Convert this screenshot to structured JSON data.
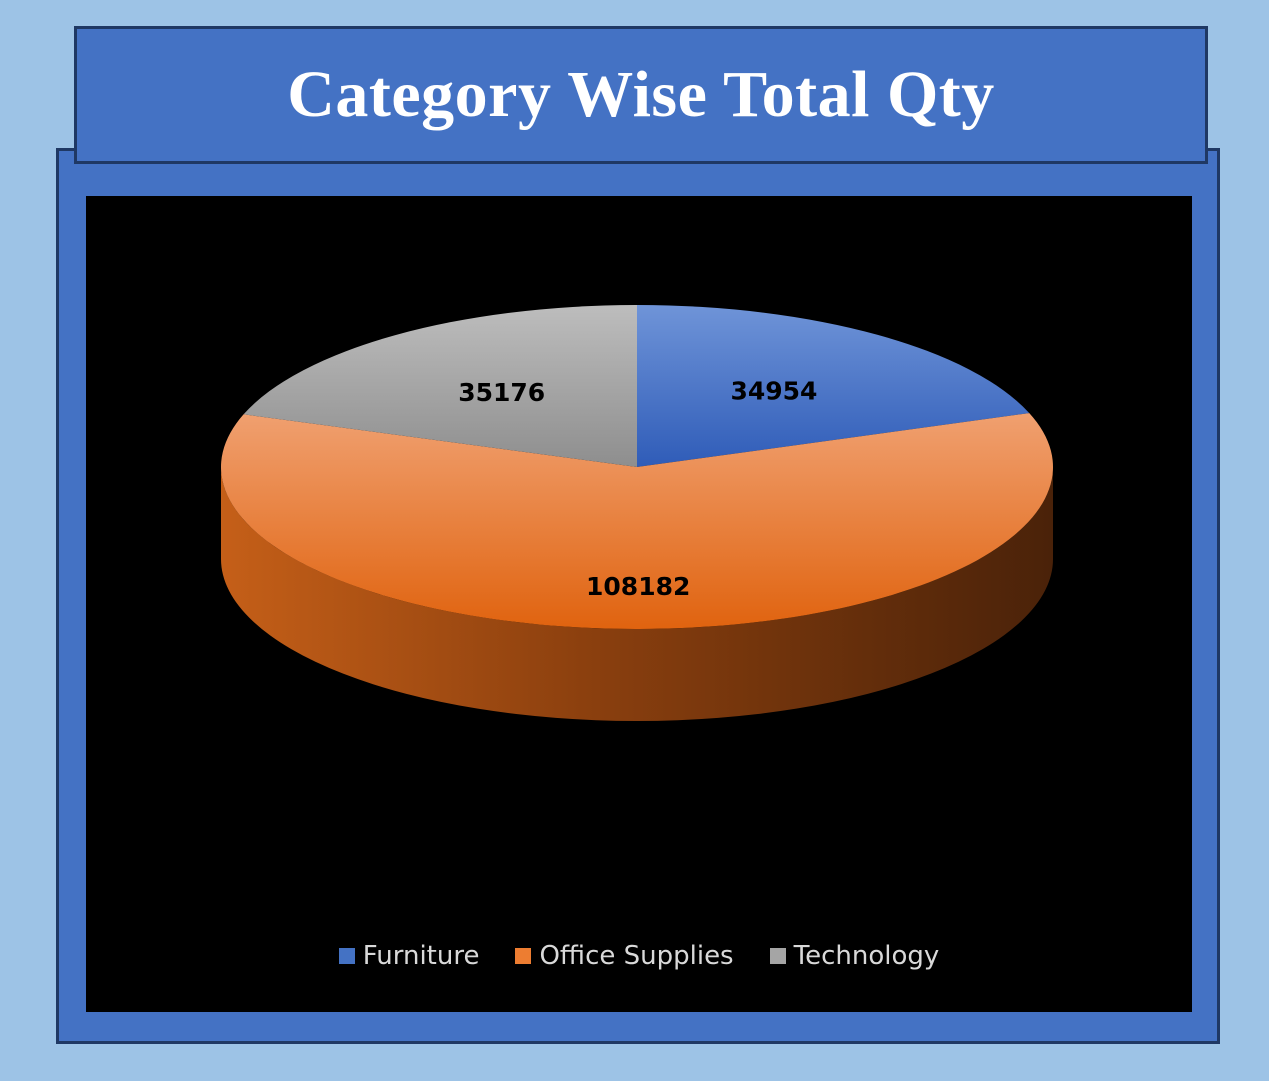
{
  "title": "Category Wise Total Qty",
  "colors": {
    "background": "#9dc3e6",
    "panel": "#4472c4",
    "panel_border": "#1f3864",
    "plot_background": "#000000"
  },
  "chart_data": {
    "type": "pie",
    "title": "Category Wise Total Qty",
    "style": "3d",
    "legend_position": "bottom",
    "categories": [
      "Furniture",
      "Office Supplies",
      "Technology"
    ],
    "values": [
      34954,
      108182,
      35176
    ],
    "data_labels": [
      "34954",
      "108182",
      "35176"
    ],
    "colors": [
      "#4472c4",
      "#ed7d31",
      "#a5a5a5"
    ]
  }
}
